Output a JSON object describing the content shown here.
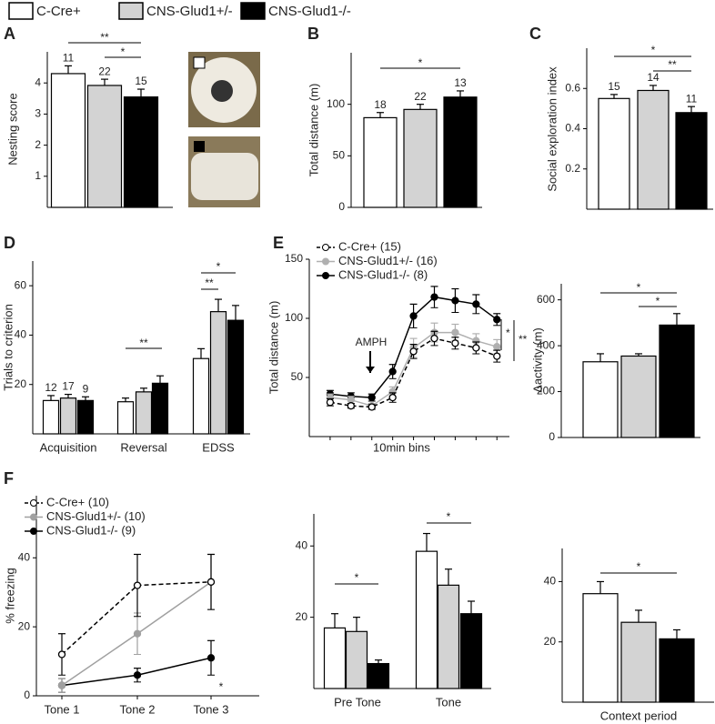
{
  "legend": {
    "items": [
      {
        "name": "C-Cre+",
        "color": "#ffffff"
      },
      {
        "name": "CNS-Glud1+/-",
        "color": "#d3d3d3"
      },
      {
        "name": "CNS-Glud1-/-",
        "color": "#000000"
      }
    ]
  },
  "chart_data": [
    {
      "type": "bar",
      "panel": "A",
      "ylabel": "Nesting score",
      "values": [
        4.3,
        3.92,
        3.55
      ],
      "errors": [
        0.25,
        0.2,
        0.25
      ],
      "colors": [
        "#ffffff",
        "#d3d3d3",
        "#000000"
      ],
      "n_labels": [
        11,
        22,
        15
      ],
      "annotations": [
        "**",
        "*"
      ],
      "ylim": [
        0,
        5
      ],
      "yticks": [
        1,
        2,
        3,
        4
      ]
    },
    {
      "type": "bar",
      "panel": "B",
      "ylabel": "Total distance (m)",
      "values": [
        87,
        95,
        107
      ],
      "errors": [
        5,
        5,
        6
      ],
      "colors": [
        "#ffffff",
        "#d3d3d3",
        "#000000"
      ],
      "n_labels": [
        18,
        22,
        13
      ],
      "annotations": [
        "*"
      ],
      "ylim": [
        0,
        150
      ],
      "yticks": [
        0,
        50,
        100
      ]
    },
    {
      "type": "bar",
      "panel": "C",
      "ylabel": "Social exploration index",
      "values": [
        0.55,
        0.59,
        0.48
      ],
      "errors": [
        0.02,
        0.025,
        0.03
      ],
      "colors": [
        "#ffffff",
        "#d3d3d3",
        "#000000"
      ],
      "n_labels": [
        15,
        14,
        11
      ],
      "annotations": [
        "*",
        "**"
      ],
      "ylim": [
        0,
        0.8
      ],
      "yticks": [
        0.2,
        0.4,
        0.6
      ]
    },
    {
      "type": "grouped",
      "panel": "D",
      "ylabel": "Trials to criterion",
      "categories": [
        "Acquisition",
        "Reversal",
        "EDSS"
      ],
      "series": [
        {
          "color": "#ffffff",
          "values": [
            13.5,
            13,
            30.5
          ],
          "errors": [
            2,
            1.5,
            4
          ]
        },
        {
          "color": "#d3d3d3",
          "values": [
            14.5,
            17,
            49.5
          ],
          "errors": [
            1.5,
            1.5,
            5
          ]
        },
        {
          "color": "#000000",
          "values": [
            13.5,
            20.5,
            46
          ],
          "errors": [
            1.5,
            3,
            6
          ]
        }
      ],
      "n_labels": [
        12,
        17,
        9
      ],
      "annotations": [
        "**",
        "**",
        "*"
      ],
      "ylim": [
        0,
        70
      ],
      "yticks": [
        20,
        40,
        60
      ]
    },
    {
      "type": "line",
      "panel": "E",
      "ylabel": "Total distance (m)",
      "xlabel": "10min bins",
      "x": [
        1,
        2,
        3,
        4,
        5,
        6,
        7,
        8,
        9
      ],
      "xlim": [
        0,
        9.6
      ],
      "series": [
        {
          "name": "C-Cre+ (15)",
          "color": "#000000",
          "fill": "#ffffff",
          "dashed": true,
          "values": [
            29,
            26,
            25,
            33,
            72,
            83,
            79,
            75,
            68
          ],
          "errors": [
            3,
            2,
            2,
            4,
            6,
            6,
            5,
            5,
            5
          ]
        },
        {
          "name": "CNS-Glud1+/- (16)",
          "color": "#b0b0b0",
          "fill": "#b0b0b0",
          "dashed": false,
          "values": [
            33,
            31,
            26,
            38,
            75,
            88,
            88,
            81,
            76
          ],
          "errors": [
            3,
            3,
            2,
            4,
            8,
            8,
            7,
            6,
            6
          ]
        },
        {
          "name": "CNS-Glud1-/- (8)",
          "color": "#000000",
          "fill": "#000000",
          "dashed": false,
          "values": [
            36,
            34,
            33,
            55,
            102,
            118,
            115,
            112,
            99
          ],
          "errors": [
            3,
            3,
            3,
            6,
            10,
            9,
            10,
            8,
            5
          ]
        }
      ],
      "annotations": [
        "AMPH",
        "*",
        "**"
      ],
      "ylim": [
        0,
        150
      ],
      "yticks": [
        50,
        100,
        150
      ]
    },
    {
      "type": "bar",
      "ylabel": "Δactivity (m)",
      "values": [
        330,
        355,
        490
      ],
      "errors": [
        35,
        10,
        50
      ],
      "colors": [
        "#ffffff",
        "#d3d3d3",
        "#000000"
      ],
      "annotations": [
        "*",
        "*"
      ],
      "ylim": [
        0,
        670
      ],
      "yticks": [
        0,
        200,
        400,
        600
      ]
    },
    {
      "type": "line",
      "panel": "F",
      "ylabel": "% freezing",
      "categories": [
        "Tone 1",
        "Tone 2",
        "Tone 3"
      ],
      "series": [
        {
          "name": "C-Cre+ (10)",
          "color": "#000000",
          "fill": "#ffffff",
          "dashed": true,
          "values": [
            12,
            32,
            33
          ],
          "errors": [
            6,
            9,
            8
          ]
        },
        {
          "name": "CNS-Glud1+/- (10)",
          "color": "#a0a0a0",
          "fill": "#a0a0a0",
          "dashed": false,
          "values": [
            3,
            18,
            33
          ],
          "errors": [
            2,
            6,
            8
          ]
        },
        {
          "name": "CNS-Glud1-/- (9)",
          "color": "#000000",
          "fill": "#000000",
          "dashed": false,
          "values": [
            3,
            6,
            11
          ],
          "errors": [
            2,
            2,
            5
          ]
        }
      ],
      "annotations": [
        "*"
      ],
      "ylim": [
        0,
        58
      ],
      "yticks": [
        0,
        20,
        40
      ]
    },
    {
      "type": "grouped",
      "categories": [
        "Pre Tone",
        "Tone"
      ],
      "series": [
        {
          "color": "#ffffff",
          "values": [
            17,
            38.5
          ],
          "errors": [
            4,
            5
          ]
        },
        {
          "color": "#d3d3d3",
          "values": [
            16,
            29
          ],
          "errors": [
            4,
            4.5
          ]
        },
        {
          "color": "#000000",
          "values": [
            7,
            21
          ],
          "errors": [
            1,
            3.5
          ]
        }
      ],
      "annotations": [
        "*",
        "*"
      ],
      "ylim": [
        0,
        49
      ],
      "yticks": [
        20,
        40
      ]
    },
    {
      "type": "grouped",
      "categories": [
        "Context period"
      ],
      "series": [
        {
          "color": "#ffffff",
          "values": [
            36
          ],
          "errors": [
            4
          ]
        },
        {
          "color": "#d3d3d3",
          "values": [
            26.5
          ],
          "errors": [
            4
          ]
        },
        {
          "color": "#000000",
          "values": [
            21
          ],
          "errors": [
            3
          ]
        }
      ],
      "annotations": [
        "*"
      ],
      "ylim": [
        0,
        51
      ],
      "yticks": [
        20,
        40
      ]
    }
  ]
}
